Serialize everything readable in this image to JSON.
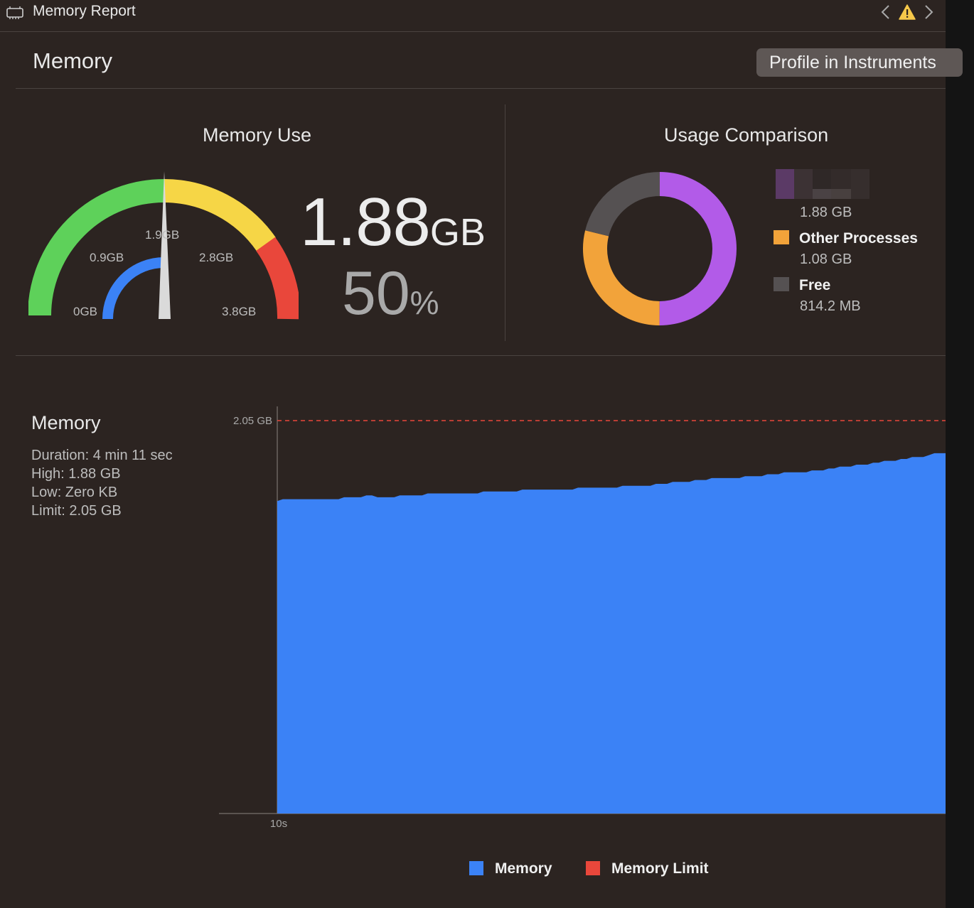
{
  "window": {
    "title": "Memory Report"
  },
  "header": {
    "title": "Memory",
    "profile_button": "Profile in Instruments"
  },
  "gauge": {
    "title": "Memory Use",
    "tick_labels": [
      "0GB",
      "0.9GB",
      "1.9GB",
      "2.8GB",
      "3.8GB"
    ],
    "value_number": "1.88",
    "value_unit": "GB",
    "percent_number": "50",
    "percent_symbol": "%",
    "level_fraction": 0.5,
    "colors": {
      "green": "#5ed15a",
      "yellow": "#f6d646",
      "red": "#e9473b",
      "blue": "#3b82f6",
      "needle": "#dadada"
    }
  },
  "usage": {
    "title": "Usage Comparison",
    "slices": [
      {
        "label": "",
        "value": "1.88 GB",
        "color": "#b25be8"
      },
      {
        "label": "Other Processes",
        "value": "1.08 GB",
        "color": "#f2a33a"
      },
      {
        "label": "Free",
        "value": "814.2 MB",
        "color": "#555152"
      }
    ]
  },
  "memory_chart": {
    "title": "Memory",
    "stats": [
      "Duration: 4 min 11 sec",
      "High: 1.88 GB",
      "Low: Zero KB",
      "Limit: 2.05 GB"
    ],
    "legend": [
      {
        "label": "Memory",
        "color": "#3b82f6"
      },
      {
        "label": "Memory Limit",
        "color": "#e9473b"
      }
    ]
  },
  "chart_data": {
    "type": "area",
    "title": "",
    "ylabel": "",
    "xlabel": "",
    "y_tick_labels": [
      "2.05 GB"
    ],
    "x_tick_labels": [
      "10s"
    ],
    "ylim": [
      0,
      2.05
    ],
    "limit": 2.05,
    "series": [
      {
        "name": "Memory",
        "x": [
          10,
          12,
          14,
          16,
          18,
          20,
          22,
          24,
          26,
          28,
          30,
          32,
          34,
          36,
          38,
          40,
          42,
          44,
          46,
          48,
          50,
          52,
          54,
          56,
          58,
          60,
          62,
          64,
          66,
          68,
          70,
          72,
          74,
          76,
          78,
          80,
          82,
          84,
          86,
          88,
          90,
          92,
          94,
          96,
          98,
          100,
          102,
          104,
          106,
          108,
          110,
          112,
          114,
          116,
          118,
          120,
          122,
          124,
          126,
          128,
          130,
          132,
          134,
          136,
          138,
          140,
          142,
          144,
          146,
          148,
          150,
          152,
          154,
          156,
          158,
          160,
          162,
          164,
          166,
          168,
          170,
          172,
          174,
          176,
          178,
          180,
          182,
          184,
          186,
          188,
          190,
          192,
          194,
          196,
          198,
          200,
          202,
          204,
          206,
          208,
          210,
          212,
          214,
          216,
          218,
          220,
          222,
          224,
          226,
          228,
          230,
          232,
          234,
          236,
          238,
          240,
          242,
          244,
          246,
          248,
          250
        ],
        "values": [
          1.63,
          1.64,
          1.64,
          1.64,
          1.64,
          1.64,
          1.64,
          1.64,
          1.64,
          1.64,
          1.64,
          1.64,
          1.65,
          1.65,
          1.65,
          1.65,
          1.66,
          1.66,
          1.65,
          1.65,
          1.65,
          1.65,
          1.66,
          1.66,
          1.66,
          1.66,
          1.66,
          1.67,
          1.67,
          1.67,
          1.67,
          1.67,
          1.67,
          1.67,
          1.67,
          1.67,
          1.67,
          1.68,
          1.68,
          1.68,
          1.68,
          1.68,
          1.68,
          1.68,
          1.69,
          1.69,
          1.69,
          1.69,
          1.69,
          1.69,
          1.69,
          1.69,
          1.69,
          1.69,
          1.7,
          1.7,
          1.7,
          1.7,
          1.7,
          1.7,
          1.7,
          1.7,
          1.71,
          1.71,
          1.71,
          1.71,
          1.71,
          1.71,
          1.72,
          1.72,
          1.72,
          1.73,
          1.73,
          1.73,
          1.73,
          1.74,
          1.74,
          1.74,
          1.75,
          1.75,
          1.75,
          1.75,
          1.75,
          1.75,
          1.76,
          1.76,
          1.76,
          1.76,
          1.77,
          1.77,
          1.77,
          1.78,
          1.78,
          1.78,
          1.78,
          1.78,
          1.79,
          1.79,
          1.79,
          1.8,
          1.8,
          1.81,
          1.81,
          1.81,
          1.82,
          1.82,
          1.82,
          1.83,
          1.83,
          1.84,
          1.84,
          1.84,
          1.85,
          1.85,
          1.86,
          1.86,
          1.86,
          1.87,
          1.88,
          1.88,
          1.88
        ]
      }
    ]
  }
}
